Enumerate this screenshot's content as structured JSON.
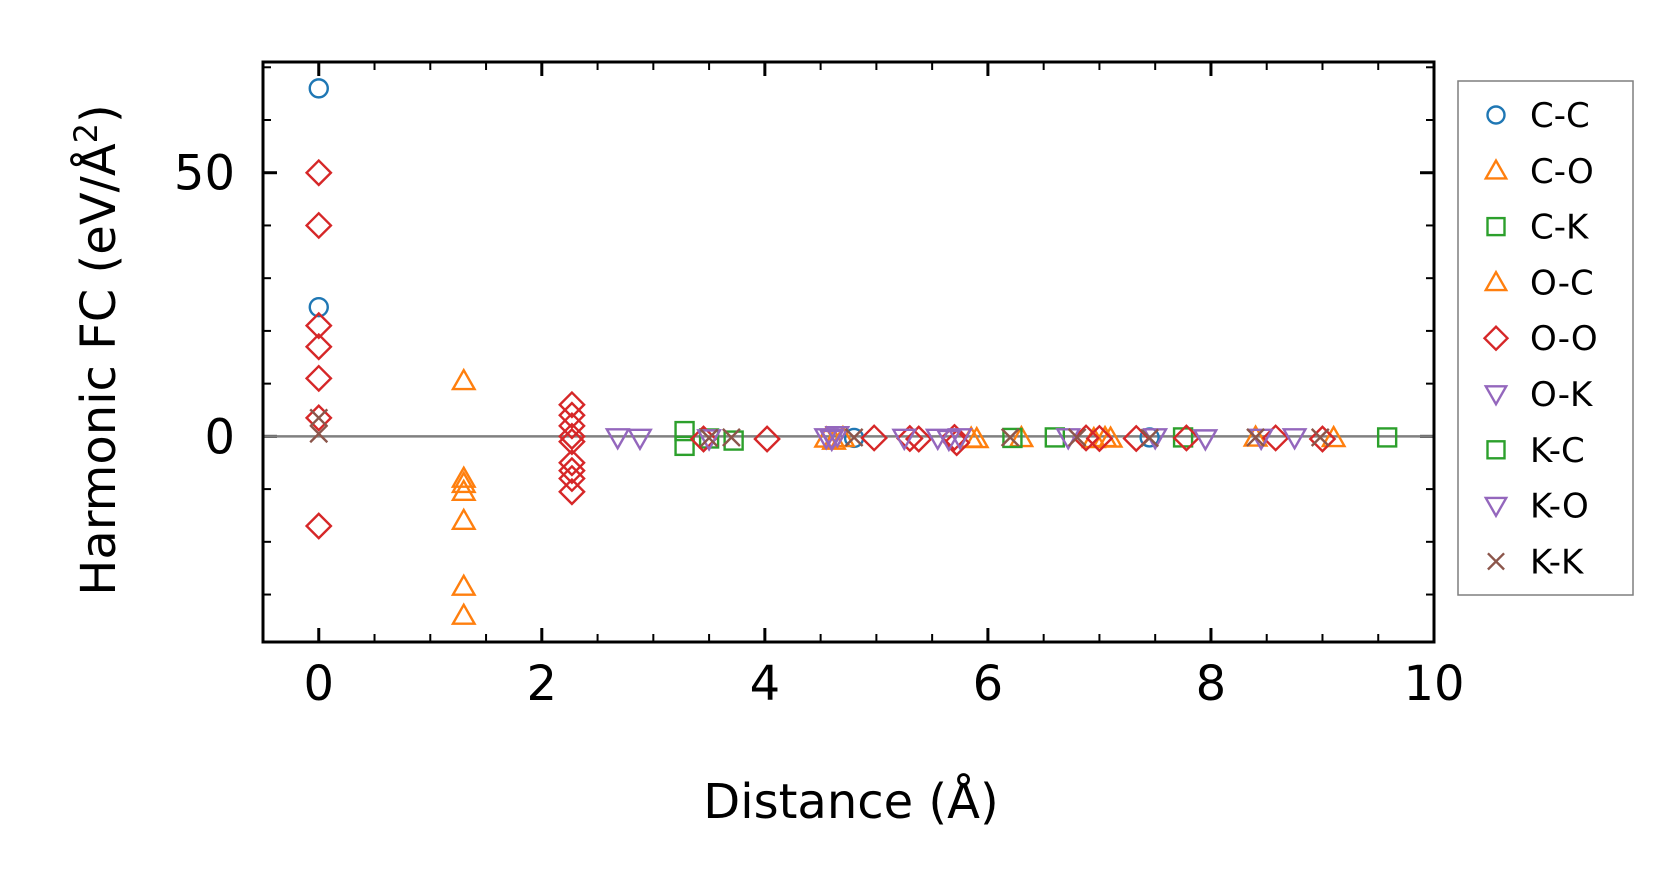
{
  "chart_data": {
    "type": "scatter",
    "xlabel": "Distance (Å)",
    "ylabel": "Harmonic FC (eV/Å²)",
    "ylabel_main": "Harmonic FC (eV/Å",
    "ylabel_sup": "2",
    "ylabel_close": ")",
    "xlim": [
      -0.5,
      10.0
    ],
    "ylim": [
      -39,
      71
    ],
    "xticks": [
      0,
      2,
      4,
      6,
      8,
      10
    ],
    "xtick_labels": [
      "0",
      "2",
      "4",
      "6",
      "8",
      "10"
    ],
    "xminor": [
      -0.5,
      0.5,
      1,
      1.5,
      2.5,
      3,
      3.5,
      4.5,
      5,
      5.5,
      6.5,
      7,
      7.5,
      8.5,
      9,
      9.5
    ],
    "yticks": [
      0,
      50
    ],
    "ytick_labels": [
      "0",
      "50"
    ],
    "yminor": [
      -30,
      -20,
      -10,
      10,
      20,
      30,
      40,
      60,
      70
    ],
    "zero_line": true,
    "grid": false,
    "legend_position": "outside-right",
    "series": [
      {
        "name": "C-C",
        "marker": "circle",
        "color": "#1f77b4",
        "x": [
          0,
          0,
          4.8,
          7.45
        ],
        "y": [
          66,
          24.5,
          -0.3,
          -0.2
        ]
      },
      {
        "name": "C-O",
        "marker": "triangle-up",
        "color": "#ff7f0e",
        "x": [
          1.3,
          1.3,
          1.3,
          1.3,
          1.3,
          1.3,
          1.3,
          4.55,
          4.62,
          4.7,
          5.9,
          6.3,
          7.1,
          9.1
        ],
        "y": [
          10.5,
          -8,
          -9,
          -10.5,
          -16,
          -28.5,
          -34,
          -0.4,
          -0.8,
          -0.3,
          -0.5,
          -0.3,
          -0.4,
          -0.3
        ]
      },
      {
        "name": "C-K",
        "marker": "square",
        "color": "#2ca02c",
        "x": [
          3.28,
          3.28,
          3.5,
          3.72,
          6.22,
          6.6,
          7.75
        ],
        "y": [
          1,
          -1.8,
          -0.4,
          -0.8,
          -0.3,
          -0.2,
          -0.2
        ]
      },
      {
        "name": "O-C",
        "marker": "triangle-up",
        "color": "#ff7f0e",
        "x": [
          5.85,
          6.95,
          7.05,
          8.4
        ],
        "y": [
          -0.4,
          -0.5,
          -0.3,
          -0.2
        ]
      },
      {
        "name": "O-O",
        "marker": "diamond",
        "color": "#d62728",
        "x": [
          0,
          0,
          0,
          0,
          0,
          0,
          0,
          2.27,
          2.27,
          2.27,
          2.27,
          2.27,
          2.27,
          2.27,
          2.27,
          2.27,
          3.45,
          4.02,
          4.98,
          5.3,
          5.38,
          5.7,
          5.72,
          6.88,
          7.0,
          7.33,
          7.78,
          8.58,
          9.0
        ],
        "y": [
          50,
          40,
          21,
          17,
          11,
          3.5,
          -17,
          6,
          4,
          2,
          0,
          -1,
          -5,
          -6.5,
          -8,
          -10.5,
          -0.5,
          -0.5,
          -0.3,
          -0.4,
          -0.5,
          -0.2,
          -1.2,
          -0.3,
          -0.4,
          -0.4,
          -0.3,
          -0.3,
          -0.5
        ]
      },
      {
        "name": "O-K",
        "marker": "triangle-down",
        "color": "#9467bd",
        "x": [
          2.68,
          2.88,
          4.55,
          4.6,
          4.65,
          5.25,
          5.65,
          5.75,
          7.5,
          7.95,
          8.45,
          8.75
        ],
        "y": [
          -0.2,
          -0.3,
          -0.2,
          -0.5,
          0.2,
          -0.3,
          -0.5,
          -0.2,
          -0.2,
          -0.4,
          -0.3,
          -0.2
        ]
      },
      {
        "name": "K-C",
        "marker": "square",
        "color": "#2ca02c",
        "x": [
          9.58
        ],
        "y": [
          -0.2
        ]
      },
      {
        "name": "K-O",
        "marker": "triangle-down",
        "color": "#9467bd",
        "x": [
          3.5,
          4.6,
          5.55,
          6.72
        ],
        "y": [
          -0.4,
          -0.3,
          -0.3,
          -0.2
        ]
      },
      {
        "name": "K-K",
        "marker": "x",
        "color": "#8c564b",
        "x": [
          0,
          0,
          3.5,
          3.7,
          4.8,
          6.2,
          6.8,
          7.45,
          8.4,
          8.98
        ],
        "y": [
          3.5,
          0.5,
          -0.3,
          -0.2,
          -0.2,
          -0.2,
          -0.2,
          -0.3,
          -0.2,
          -0.2
        ]
      }
    ]
  }
}
